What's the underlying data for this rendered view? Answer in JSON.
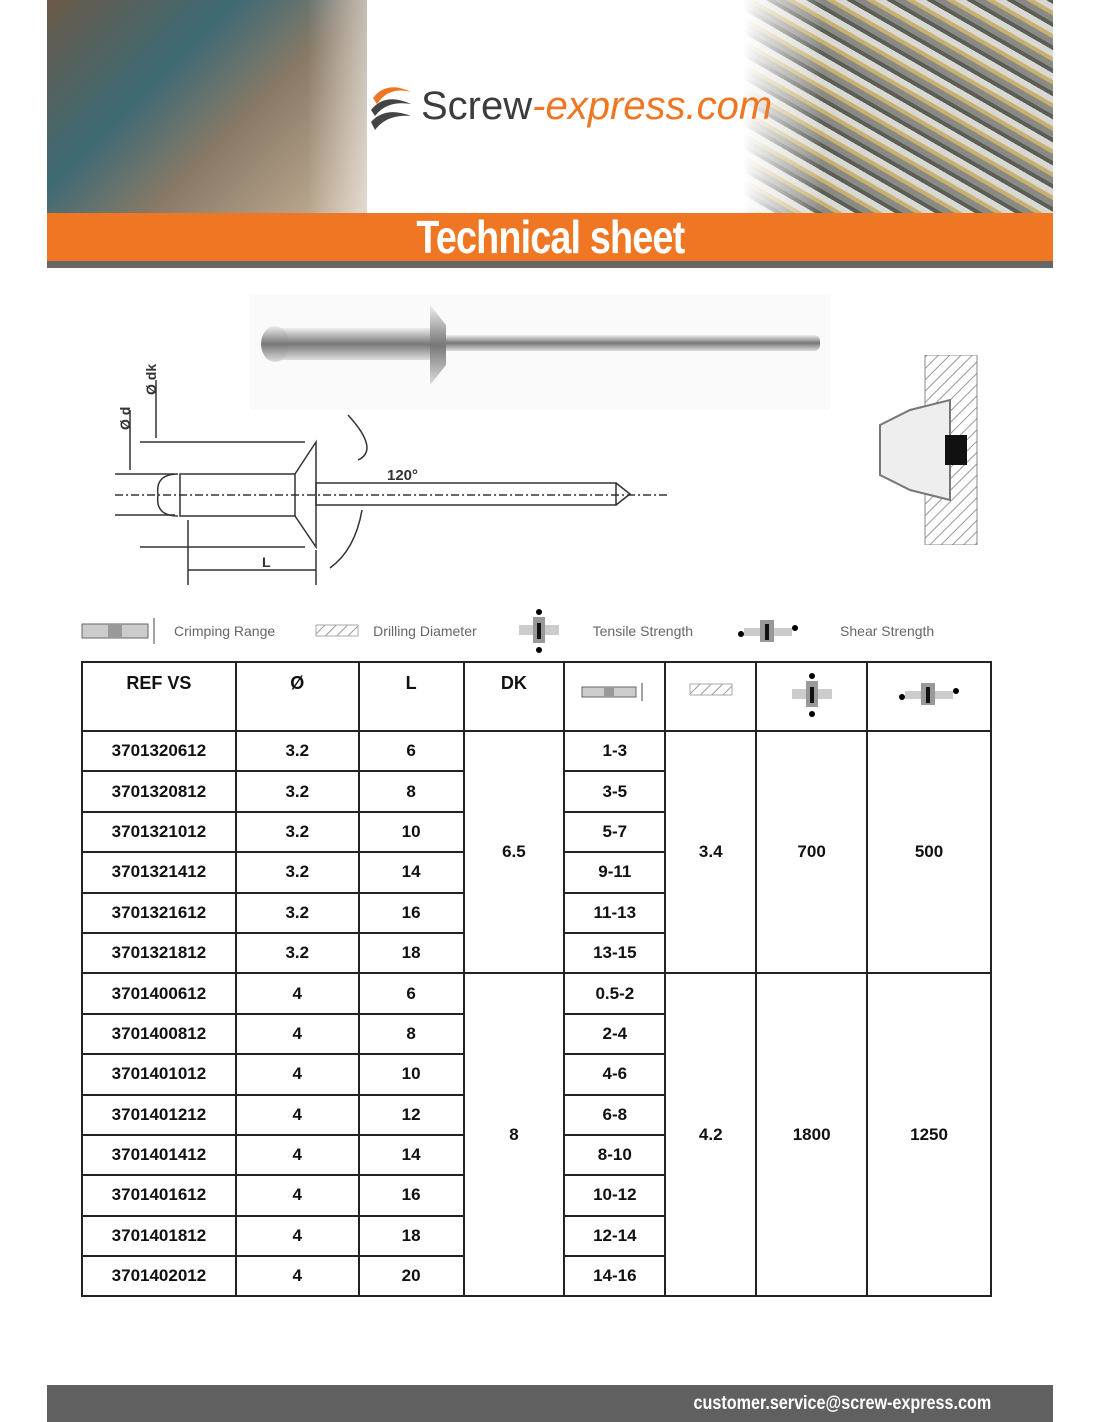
{
  "header": {
    "logo_main": "Screw",
    "logo_accent": "-express.com",
    "title": "Technical sheet"
  },
  "diagram": {
    "d_label": "Ø d",
    "dk_label": "Ø dk",
    "angle": "120°",
    "length_label": "L"
  },
  "legend": [
    {
      "icon": "crimping-range-icon",
      "label": "Crimping Range"
    },
    {
      "icon": "drilling-diameter-icon",
      "label": "Drilling Diameter"
    },
    {
      "icon": "tensile-strength-icon",
      "label": "Tensile Strength"
    },
    {
      "icon": "shear-strength-icon",
      "label": "Shear Strength"
    }
  ],
  "table": {
    "headers": [
      "REF VS",
      "Ø",
      "L",
      "DK"
    ],
    "header_icons": [
      "crimping-range-icon",
      "drilling-diameter-icon",
      "tensile-strength-icon",
      "shear-strength-icon"
    ],
    "groups": [
      {
        "dk": "6.5",
        "drill": "3.4",
        "tensile": "700",
        "shear": "500",
        "rows": [
          [
            "3701320612",
            "3.2",
            "6",
            "1-3"
          ],
          [
            "3701320812",
            "3.2",
            "8",
            "3-5"
          ],
          [
            "3701321012",
            "3.2",
            "10",
            "5-7"
          ],
          [
            "3701321412",
            "3.2",
            "14",
            "9-11"
          ],
          [
            "3701321612",
            "3.2",
            "16",
            "11-13"
          ],
          [
            "3701321812",
            "3.2",
            "18",
            "13-15"
          ]
        ]
      },
      {
        "dk": "8",
        "drill": "4.2",
        "tensile": "1800",
        "shear": "1250",
        "rows": [
          [
            "3701400612",
            "4",
            "6",
            "0.5-2"
          ],
          [
            "3701400812",
            "4",
            "8",
            "2-4"
          ],
          [
            "3701401012",
            "4",
            "10",
            "4-6"
          ],
          [
            "3701401212",
            "4",
            "12",
            "6-8"
          ],
          [
            "3701401412",
            "4",
            "14",
            "8-10"
          ],
          [
            "3701401612",
            "4",
            "16",
            "10-12"
          ],
          [
            "3701401812",
            "4",
            "18",
            "12-14"
          ],
          [
            "3701402012",
            "4",
            "20",
            "14-16"
          ]
        ]
      }
    ]
  },
  "footer": {
    "email": "customer.service@screw-express.com"
  },
  "colors": {
    "accent": "#ef7622",
    "footer": "#606060"
  }
}
